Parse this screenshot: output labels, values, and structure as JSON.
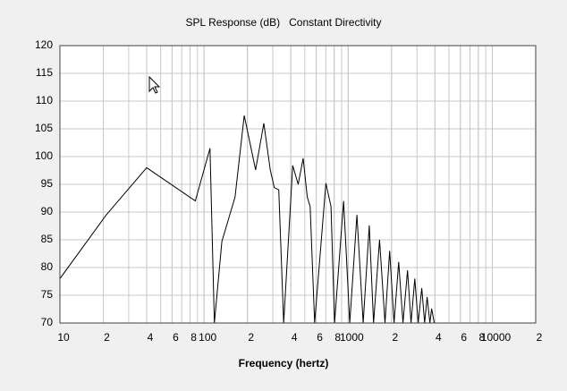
{
  "chart_data": {
    "type": "line",
    "title": "SPL Response (dB)   Constant Directivity",
    "x_label": "Frequency (hertz)",
    "x_scale": "log",
    "grid": true,
    "xlim": [
      10,
      20000
    ],
    "ylim": [
      70,
      120
    ],
    "xticks": [
      10,
      {
        "value": 20,
        "label": "2"
      },
      {
        "value": 40,
        "label": "4"
      },
      {
        "value": 60,
        "label": "6"
      },
      {
        "value": 80,
        "label": "8"
      },
      100,
      {
        "value": 200,
        "label": "2"
      },
      {
        "value": 400,
        "label": "4"
      },
      {
        "value": 600,
        "label": "6"
      },
      {
        "value": 800,
        "label": "8"
      },
      1000,
      {
        "value": 2000,
        "label": "2"
      },
      {
        "value": 4000,
        "label": "4"
      },
      {
        "value": 6000,
        "label": "6"
      },
      {
        "value": 8000,
        "label": "8"
      },
      10000,
      {
        "value": 20000,
        "label": "2"
      }
    ],
    "yticks": [
      70,
      75,
      80,
      85,
      90,
      95,
      100,
      105,
      110,
      115,
      120
    ],
    "series": [
      {
        "color": "#000000",
        "x": [
          10,
          21,
          40,
          87,
          110,
          118,
          133,
          164,
          190,
          228,
          260,
          288,
          307,
          330,
          357,
          412,
          450,
          487,
          520,
          545,
          585,
          700,
          760,
          805,
          930,
          1025,
          1150,
          1270,
          1400,
          1500,
          1650,
          1800,
          1940,
          2080,
          2240,
          2400,
          2580,
          2730,
          2900,
          3060,
          3240,
          3390,
          3530,
          3690,
          3790,
          3960
        ],
        "values": [
          78,
          89.5,
          98,
          92,
          101.5,
          70,
          84.7,
          92.7,
          107.4,
          97.6,
          106,
          97.6,
          94.4,
          94,
          70,
          98.4,
          95,
          99.7,
          92.7,
          91,
          70,
          95.2,
          91,
          70,
          92,
          70,
          89.5,
          70,
          87.6,
          70,
          85,
          70,
          83,
          70,
          81,
          70,
          79.5,
          70,
          78,
          70,
          76.3,
          70,
          74.7,
          70,
          72.6,
          70
        ]
      }
    ]
  }
}
